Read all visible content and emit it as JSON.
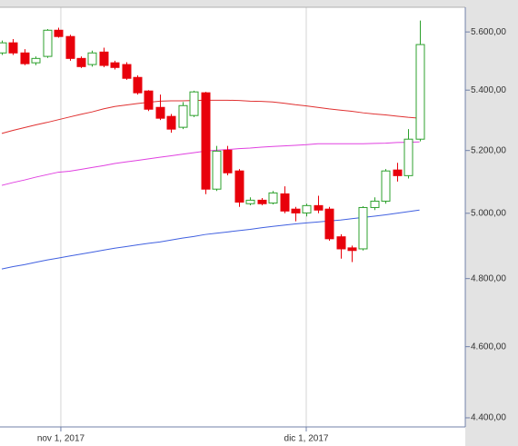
{
  "chart_data": {
    "type": "candlestick",
    "x": [
      0,
      1,
      2,
      3,
      4,
      5,
      6,
      7,
      8,
      9,
      10,
      11,
      12,
      13,
      14,
      15,
      16,
      17,
      18,
      19,
      20,
      21,
      22,
      23,
      24,
      25,
      26,
      27,
      28,
      29,
      30,
      31,
      32,
      33,
      34,
      35,
      36,
      37
    ],
    "open": [
      5527,
      5562,
      5527,
      5493,
      5515,
      5606,
      5584,
      5508,
      5487,
      5530,
      5493,
      5487,
      5443,
      5397,
      5342,
      5312,
      5276,
      5315,
      5391,
      5076,
      5201,
      5134,
      5030,
      5041,
      5032,
      5061,
      5013,
      5001,
      5024,
      5013,
      4927,
      4893,
      4890,
      5018,
      5038,
      5137,
      5119,
      5237
    ],
    "high": [
      5570,
      5575,
      5540,
      5515,
      5610,
      5615,
      5590,
      5515,
      5535,
      5545,
      5500,
      5495,
      5450,
      5400,
      5385,
      5320,
      5360,
      5398,
      5394,
      5215,
      5215,
      5140,
      5050,
      5048,
      5070,
      5085,
      5020,
      5030,
      5055,
      5020,
      4935,
      4900,
      5022,
      5050,
      5140,
      5160,
      5270,
      5640
    ],
    "low": [
      5520,
      5520,
      5485,
      5485,
      5510,
      5580,
      5500,
      5475,
      5480,
      5478,
      5470,
      5435,
      5385,
      5330,
      5300,
      5258,
      5270,
      5310,
      5060,
      5070,
      5120,
      5020,
      5025,
      5025,
      5028,
      5000,
      4975,
      4990,
      5000,
      4915,
      4860,
      4850,
      4885,
      5010,
      5030,
      5100,
      5110,
      5230
    ],
    "close": [
      5562,
      5527,
      5490,
      5508,
      5606,
      5584,
      5508,
      5480,
      5527,
      5484,
      5477,
      5440,
      5391,
      5336,
      5306,
      5270,
      5348,
      5394,
      5076,
      5198,
      5128,
      5035,
      5041,
      5030,
      5064,
      5007,
      5001,
      5024,
      5010,
      4921,
      4890,
      4885,
      5018,
      5038,
      5134,
      5119,
      5237,
      5556
    ],
    "up_color": "#2ca02c",
    "down_color": "#e8000b",
    "lines": [
      {
        "color": "#e03030",
        "values": [
          5256,
          5266,
          5275,
          5284,
          5292,
          5301,
          5310,
          5319,
          5327,
          5337,
          5345,
          5350,
          5355,
          5359,
          5363,
          5364,
          5364,
          5365,
          5366,
          5366,
          5366,
          5365,
          5363,
          5362,
          5360,
          5356,
          5351,
          5347,
          5342,
          5337,
          5333,
          5329,
          5324,
          5320,
          5317,
          5313,
          5309,
          5306
        ]
      },
      {
        "color": "#e040e0",
        "values": [
          5088,
          5097,
          5105,
          5114,
          5122,
          5130,
          5133,
          5139,
          5145,
          5151,
          5158,
          5163,
          5168,
          5173,
          5178,
          5183,
          5188,
          5193,
          5198,
          5201,
          5203,
          5206,
          5208,
          5211,
          5213,
          5215,
          5217,
          5219,
          5222,
          5222,
          5222,
          5222,
          5222,
          5223,
          5224,
          5226,
          5227,
          5228
        ]
      },
      {
        "color": "#4060e0",
        "values": [
          4829,
          4836,
          4842,
          4849,
          4856,
          4862,
          4868,
          4874,
          4880,
          4886,
          4892,
          4897,
          4902,
          4907,
          4911,
          4917,
          4923,
          4928,
          4934,
          4938,
          4942,
          4946,
          4950,
          4955,
          4959,
          4963,
          4967,
          4970,
          4973,
          4976,
          4979,
          4983,
          4987,
          4991,
          4995,
          5000,
          5005,
          5010
        ]
      }
    ],
    "xlim": [
      -0.16,
      41.06
    ],
    "xticks": [
      {
        "value": 5.23,
        "label": "nov 1, 2017"
      },
      {
        "value": 26.97,
        "label": "dic 1, 2017"
      }
    ],
    "ylim": [
      4375,
      5687
    ],
    "yticks": [
      {
        "value": 4400,
        "label": "4.400,00"
      },
      {
        "value": 4600,
        "label": "4.600,00"
      },
      {
        "value": 4800,
        "label": "4.800,00"
      },
      {
        "value": 5000,
        "label": "5.000,00"
      },
      {
        "value": 5200,
        "label": "5.200,00"
      },
      {
        "value": 5400,
        "label": "5.400,00"
      },
      {
        "value": 5600,
        "label": "5.600,00"
      }
    ],
    "log_scale": true,
    "grid": true
  }
}
